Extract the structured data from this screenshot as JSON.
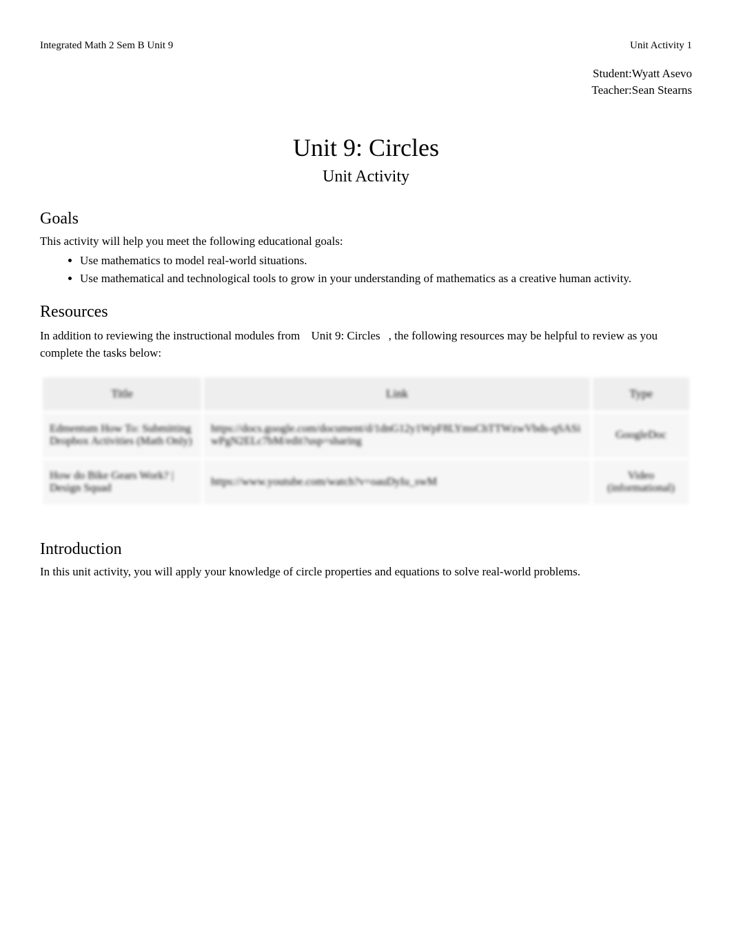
{
  "header": {
    "left": "Integrated Math 2 Sem B Unit 9",
    "right": "Unit Activity 1"
  },
  "meta": {
    "student_label": "Student:",
    "student_value": "Wyatt Asevo",
    "teacher_label": "Teacher:",
    "teacher_value": "Sean Stearns"
  },
  "title": "Unit 9: Circles",
  "subtitle": "Unit Activity",
  "goals": {
    "heading": "Goals",
    "intro": "This activity will help you meet the following educational goals:",
    "items": [
      "Use mathematics to model real-world situations.",
      "Use mathematical and technological tools to grow in your understanding of mathematics as a creative human activity."
    ]
  },
  "resources": {
    "heading": "Resources",
    "intro_before": "In addition to reviewing the instructional modules from",
    "intro_link": "Unit 9: Circles",
    "intro_after": ", the following resources may be helpful to review as you complete the tasks below:",
    "columns": [
      "Title",
      "Link",
      "Type"
    ],
    "rows": [
      {
        "title": "Edmentum How To: Submitting Dropbox Activities (Math Only)",
        "link": "https://docs.google.com/document/d/1dnG12y1WpF8LYmsChTTWzwVbds-qSASiwPgN2ELc7bM/edit?usp=sharing",
        "type": "GoogleDoc"
      },
      {
        "title": "How do Bike Gears Work? | Design Squad",
        "link": "https://www.youtube.com/watch?v=oauDyIu_swM",
        "type": "Video (informational)"
      }
    ]
  },
  "introduction": {
    "heading": "Introduction",
    "body": "In this unit activity, you will apply your knowledge of circle properties and equations to solve real-world problems."
  }
}
